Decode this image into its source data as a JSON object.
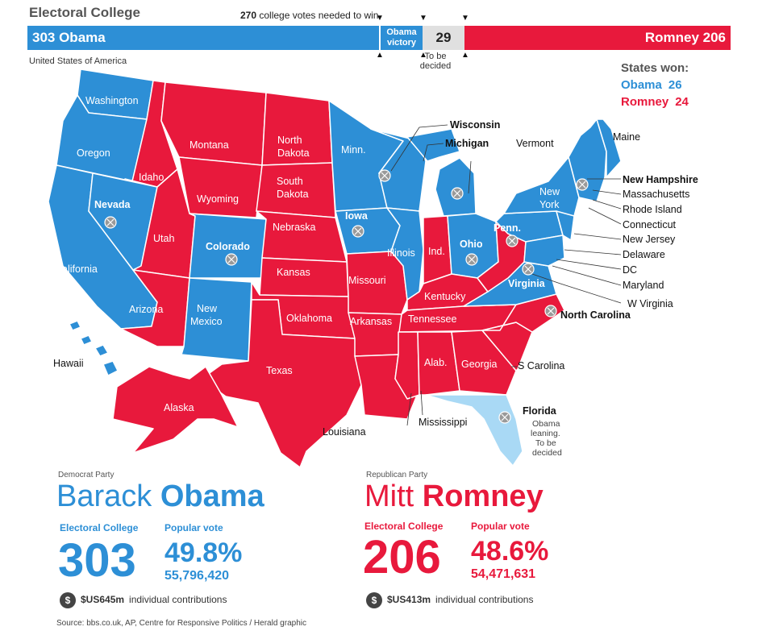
{
  "header": {
    "title": "Electoral College",
    "needed_num": "270",
    "needed_text": "college votes needed to win",
    "obama_bar": "303 Obama",
    "victory_line1": "Obama",
    "victory_line2": "victory",
    "tbd_value": "29",
    "tbd_line1": "To be",
    "tbd_line2": "decided",
    "romney_bar": "Romney 206",
    "country": "United States of America"
  },
  "states_won": {
    "title": "States won:",
    "obama_label": "Obama",
    "obama_count": "26",
    "romney_label": "Romney",
    "romney_count": "24"
  },
  "colors": {
    "obama": "#2d8fd6",
    "romney": "#e8193c",
    "leaning": "#a9d9f5",
    "undecided_marker": "#9a9a9a"
  },
  "map_labels": {
    "washington": "Washington",
    "oregon": "Oregon",
    "california": "California",
    "nevada": "Nevada",
    "idaho": "Idaho",
    "montana": "Montana",
    "wyoming": "Wyoming",
    "utah": "Utah",
    "arizona": "Arizona",
    "colorado": "Colorado",
    "new_mexico_1": "New",
    "new_mexico_2": "Mexico",
    "north_dakota_1": "North",
    "north_dakota_2": "Dakota",
    "south_dakota_1": "South",
    "south_dakota_2": "Dakota",
    "nebraska": "Nebraska",
    "kansas": "Kansas",
    "oklahoma": "Oklahoma",
    "texas": "Texas",
    "minnesota": "Minn.",
    "iowa": "Iowa",
    "missouri": "Missouri",
    "arkansas": "Arkansas",
    "louisiana": "Louisiana",
    "wisconsin": "Wisconsin",
    "illinois": "Illinois",
    "michigan": "Michigan",
    "indiana": "Ind.",
    "ohio": "Ohio",
    "kentucky": "Kentucky",
    "tennessee": "Tennessee",
    "mississippi": "Mississippi",
    "alabama": "Alab.",
    "georgia": "Georgia",
    "florida": "Florida",
    "florida_note_1": "Obama",
    "florida_note_2": "leaning.",
    "florida_note_3": "To be",
    "florida_note_4": "decided",
    "south_carolina": "S Carolina",
    "north_carolina": "North Carolina",
    "virginia": "Virginia",
    "west_virginia": "W Virginia",
    "pennsylvania": "Penn.",
    "new_york_1": "New",
    "new_york_2": "York",
    "vermont": "Vermont",
    "maine": "Maine",
    "new_hampshire": "New Hampshire",
    "massachusetts": "Massachusetts",
    "rhode_island": "Rhode Island",
    "connecticut": "Connecticut",
    "new_jersey": "New Jersey",
    "delaware": "Delaware",
    "dc": "DC",
    "maryland": "Maryland",
    "hawaii": "Hawaii",
    "alaska": "Alaska"
  },
  "obama": {
    "party": "Democrat Party",
    "first": "Barack",
    "last": "Obama",
    "ec_label": "Electoral College",
    "ec_value": "303",
    "pv_label": "Popular vote",
    "pv_pct": "49.8%",
    "pv_votes": "55,796,420",
    "contrib_amount": "$US645m",
    "contrib_text": "individual contributions"
  },
  "romney": {
    "party": "Republican Party",
    "first": "Mitt",
    "last": "Romney",
    "ec_label": "Electoral College",
    "ec_value": "206",
    "pv_label": "Popular vote",
    "pv_pct": "48.6%",
    "pv_votes": "54,471,631",
    "contrib_amount": "$US413m",
    "contrib_text": "individual contributions"
  },
  "dollar_symbol": "$",
  "source": "Source: bbs.co.uk, AP, Centre for Responsive Politics / Herald graphic"
}
